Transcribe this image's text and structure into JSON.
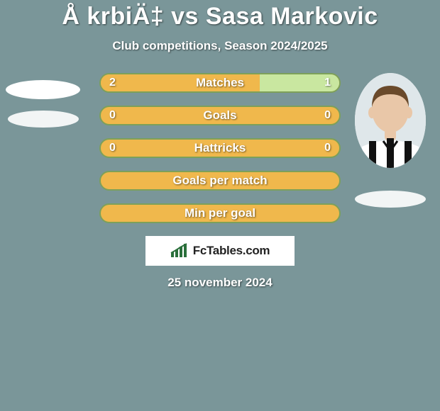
{
  "colors": {
    "page_bg": "#7a9699",
    "title_color": "#ffffff",
    "subtitle_color": "#ffffff",
    "bar_left_fill": "#f0b84c",
    "bar_right_fill": "#c9e7a0",
    "bar_full_fill": "#f0b84c",
    "bar_border": "#7da05a",
    "bar_text": "#ffffff",
    "brand_bg": "#ffffff",
    "brand_text": "#222222",
    "brand_icon": "#2a6f3b",
    "date_color": "#ffffff",
    "avatar_skin": "#e9c7a8",
    "avatar_hair": "#6a4a2b",
    "avatar_jersey_base": "#ffffff",
    "avatar_jersey_stripe": "#111111"
  },
  "typography": {
    "title_size": 34,
    "subtitle_size": 17,
    "row_label_size": 17,
    "row_value_size": 16,
    "date_size": 17
  },
  "header": {
    "title": "Å krbiÄ‡ vs Sasa Markovic",
    "subtitle": "Club competitions, Season 2024/2025"
  },
  "rows": [
    {
      "label": "Matches",
      "left": "2",
      "right": "1",
      "left_pct": 66.7,
      "right_pct": 33.3,
      "split": true
    },
    {
      "label": "Goals",
      "left": "0",
      "right": "0",
      "left_pct": 100,
      "right_pct": 0,
      "split": false
    },
    {
      "label": "Hattricks",
      "left": "0",
      "right": "0",
      "left_pct": 100,
      "right_pct": 0,
      "split": false
    },
    {
      "label": "Goals per match",
      "left": "",
      "right": "",
      "left_pct": 100,
      "right_pct": 0,
      "split": false
    },
    {
      "label": "Min per goal",
      "left": "",
      "right": "",
      "left_pct": 100,
      "right_pct": 0,
      "split": false
    }
  ],
  "brand": {
    "text": "FcTables.com"
  },
  "date": "25 november 2024"
}
